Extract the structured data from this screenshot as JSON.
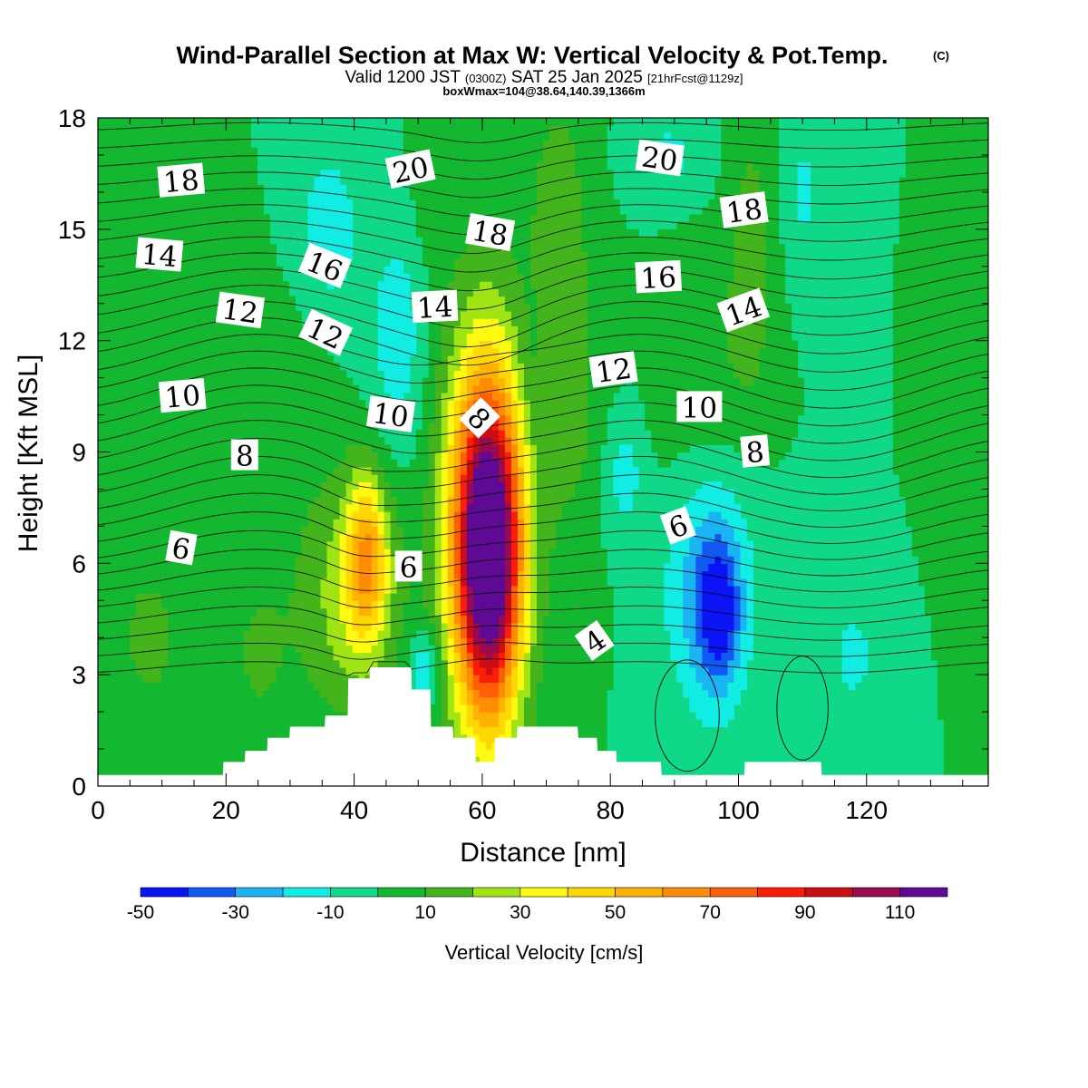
{
  "chart_data": {
    "type": "heatmap",
    "title": "Wind-Parallel Section at Max W: Vertical Velocity & Pot.Temp.",
    "title_mark": "(C)",
    "subtitle": {
      "valid_prefix": "Valid 1200 JST",
      "utc": "(0300Z)",
      "date": "SAT 25 Jan 2025",
      "forecast": "[21hrFcst@1129z]"
    },
    "subtitle2": "boxWmax=104@38.64,140.39,1366m",
    "xlabel": "Distance [nm]",
    "ylabel": "Height [Kft MSL]",
    "xlim": [
      0,
      139
    ],
    "ylim": [
      0,
      18
    ],
    "x_ticks": [
      "0",
      "20",
      "40",
      "60",
      "80",
      "100",
      "120"
    ],
    "y_ticks": [
      "0",
      "3",
      "6",
      "9",
      "12",
      "15",
      "18"
    ],
    "colorbar": {
      "label": "Vertical Velocity [cm/s]",
      "levels": [
        -50,
        -40,
        -30,
        -20,
        -10,
        0,
        10,
        20,
        30,
        40,
        50,
        60,
        70,
        80,
        90,
        100,
        110,
        120
      ],
      "colors": [
        "#0a14f5",
        "#1259f2",
        "#1ab4f4",
        "#11ede2",
        "#0fd988",
        "#13b830",
        "#44b41c",
        "#a0e414",
        "#fff811",
        "#ffd703",
        "#ffb202",
        "#ff8c03",
        "#fd5e07",
        "#fc1d09",
        "#cc0d12",
        "#990b50",
        "#5e0a94"
      ],
      "tick_labels": [
        "-50",
        "-30",
        "-10",
        "10",
        "30",
        "50",
        "70",
        "90",
        "110"
      ]
    },
    "vertical_velocity_features": [
      {
        "x": 61,
        "z": 6.2,
        "peak_cm_s": 115,
        "half_width_nm": 5.0,
        "half_height_kft": 4.3
      },
      {
        "x": 42,
        "z": 6.2,
        "peak_cm_s": 48,
        "half_width_nm": 3.4,
        "half_height_kft": 2.3
      },
      {
        "x": 60,
        "z": 7.5,
        "peak_cm_s": 38,
        "half_width_nm": 7.5,
        "half_height_kft": 6.0
      },
      {
        "x": 39,
        "z": 5.0,
        "peak_cm_s": 24,
        "half_width_nm": 8.0,
        "half_height_kft": 3.2
      },
      {
        "x": 97,
        "z": 4.6,
        "peak_cm_s": -33,
        "half_width_nm": 3.4,
        "half_height_kft": 2.0
      },
      {
        "x": 95,
        "z": 5.5,
        "peak_cm_s": -25,
        "half_width_nm": 7.0,
        "half_height_kft": 3.5
      },
      {
        "x": 82,
        "z": 8.5,
        "peak_cm_s": -22,
        "half_width_nm": 4.0,
        "half_height_kft": 2.2
      },
      {
        "x": 51,
        "z": 3.2,
        "peak_cm_s": -24,
        "half_width_nm": 2.5,
        "half_height_kft": 1.1
      },
      {
        "x": 47,
        "z": 12.0,
        "peak_cm_s": -16,
        "half_width_nm": 5.0,
        "half_height_kft": 3.5
      },
      {
        "x": 36,
        "z": 15.0,
        "peak_cm_s": -16,
        "half_width_nm": 5.0,
        "half_height_kft": 2.4
      },
      {
        "x": 89,
        "z": 17.0,
        "peak_cm_s": -12,
        "half_width_nm": 6.0,
        "half_height_kft": 1.2
      },
      {
        "x": 110,
        "z": 16.0,
        "peak_cm_s": -12,
        "half_width_nm": 3.0,
        "half_height_kft": 2.2
      },
      {
        "x": 118,
        "z": 3.5,
        "peak_cm_s": -15,
        "half_width_nm": 3.5,
        "half_height_kft": 1.3
      },
      {
        "x": 68,
        "z": 11.0,
        "peak_cm_s": -10,
        "half_width_nm": 3.0,
        "half_height_kft": 3.0
      },
      {
        "x": 25,
        "z": 10.0,
        "peak_cm_s": 9,
        "half_width_nm": 10.0,
        "half_height_kft": 3.0
      },
      {
        "x": 8,
        "z": 4.0,
        "peak_cm_s": 12,
        "half_width_nm": 7.0,
        "half_height_kft": 3.0
      },
      {
        "x": 25,
        "z": 3.5,
        "peak_cm_s": 11,
        "half_width_nm": 5.0,
        "half_height_kft": 2.5
      },
      {
        "x": 72,
        "z": 14.0,
        "peak_cm_s": 18,
        "half_width_nm": 5.0,
        "half_height_kft": 5.0
      },
      {
        "x": 102,
        "z": 14.0,
        "peak_cm_s": 16,
        "half_width_nm": 3.5,
        "half_height_kft": 4.0
      },
      {
        "x": 52,
        "z": 16.5,
        "peak_cm_s": 9,
        "half_width_nm": 3.0,
        "half_height_kft": 2.5
      },
      {
        "x": 80,
        "z": 9.0,
        "peak_cm_s": 10,
        "half_width_nm": 10.0,
        "half_height_kft": 3.0
      },
      {
        "x": 95,
        "z": 11.0,
        "peak_cm_s": 10,
        "half_width_nm": 6.0,
        "half_height_kft": 3.0
      },
      {
        "x": 137,
        "z": 9.0,
        "peak_cm_s": 10,
        "half_width_nm": 3.0,
        "half_height_kft": 2.0
      }
    ],
    "theta_contours": [
      {
        "label": "4",
        "z": 3.9
      },
      {
        "label": "6",
        "z": 5.3
      },
      {
        "label": "8",
        "z": 8.0
      },
      {
        "label": "10",
        "z": 10.0
      },
      {
        "label": "12",
        "z": 12.3
      },
      {
        "label": "14",
        "z": 14.2
      },
      {
        "label": "16",
        "z": 15.5
      },
      {
        "label": "18",
        "z": 16.5
      },
      {
        "label": "20",
        "z": 17.3
      }
    ],
    "terrain_kft": {
      "x": [
        0,
        19.5,
        19.6,
        22.9,
        23.0,
        26.4,
        26.5,
        29.9,
        30.0,
        35.4,
        35.5,
        39.0,
        39.1,
        42.4,
        42.5,
        48.9,
        49.0,
        51.9,
        52.0,
        55.4,
        55.5,
        58.9,
        59.0,
        61.9,
        62.0,
        65.4,
        65.5,
        74.9,
        75.0,
        77.9,
        78.0,
        80.9,
        81.0,
        87.9,
        88.0,
        100.9,
        101.0,
        112.9,
        113.0,
        139
      ],
      "z": [
        0.3,
        0.3,
        0.65,
        0.65,
        0.95,
        0.95,
        1.3,
        1.3,
        1.6,
        1.6,
        1.9,
        1.9,
        2.9,
        2.9,
        3.2,
        3.2,
        2.6,
        2.6,
        1.6,
        1.6,
        1.3,
        1.3,
        0.65,
        0.65,
        1.3,
        1.3,
        1.6,
        1.6,
        1.3,
        1.3,
        0.95,
        0.95,
        0.65,
        0.65,
        0.3,
        0.3,
        0.65,
        0.65,
        0.3,
        0.3
      ]
    },
    "contour_labels": [
      {
        "text": "18",
        "x": 13.0,
        "z": 16.3,
        "rot": -5
      },
      {
        "text": "20",
        "x": 48.8,
        "z": 16.6,
        "rot": -12
      },
      {
        "text": "20",
        "x": 87.7,
        "z": 16.9,
        "rot": 8
      },
      {
        "text": "18",
        "x": 61.2,
        "z": 14.9,
        "rot": 10
      },
      {
        "text": "18",
        "x": 100.9,
        "z": 15.5,
        "rot": -8
      },
      {
        "text": "14",
        "x": 9.6,
        "z": 14.3,
        "rot": 5
      },
      {
        "text": "16",
        "x": 35.4,
        "z": 14.0,
        "rot": 22
      },
      {
        "text": "16",
        "x": 87.5,
        "z": 13.7,
        "rot": -3
      },
      {
        "text": "12",
        "x": 22.2,
        "z": 12.8,
        "rot": 8
      },
      {
        "text": "14",
        "x": 52.6,
        "z": 12.9,
        "rot": -3
      },
      {
        "text": "14",
        "x": 100.8,
        "z": 12.8,
        "rot": -20
      },
      {
        "text": "12",
        "x": 35.5,
        "z": 12.2,
        "rot": 25
      },
      {
        "text": "12",
        "x": 80.5,
        "z": 11.2,
        "rot": -8
      },
      {
        "text": "10",
        "x": 13.2,
        "z": 10.5,
        "rot": -5
      },
      {
        "text": "10",
        "x": 45.7,
        "z": 10.0,
        "rot": 8
      },
      {
        "text": "10",
        "x": 93.9,
        "z": 10.2,
        "rot": 0
      },
      {
        "text": "8",
        "x": 59.5,
        "z": 9.9,
        "rot": 45
      },
      {
        "text": "8",
        "x": 102.6,
        "z": 9.0,
        "rot": -5
      },
      {
        "text": "8",
        "x": 22.9,
        "z": 8.9,
        "rot": 0
      },
      {
        "text": "6",
        "x": 90.6,
        "z": 7.0,
        "rot": -20
      },
      {
        "text": "6",
        "x": 13.0,
        "z": 6.4,
        "rot": 10
      },
      {
        "text": "6",
        "x": 48.5,
        "z": 5.9,
        "rot": 0
      },
      {
        "text": "4",
        "x": 77.6,
        "z": 3.9,
        "rot": -35
      }
    ]
  }
}
